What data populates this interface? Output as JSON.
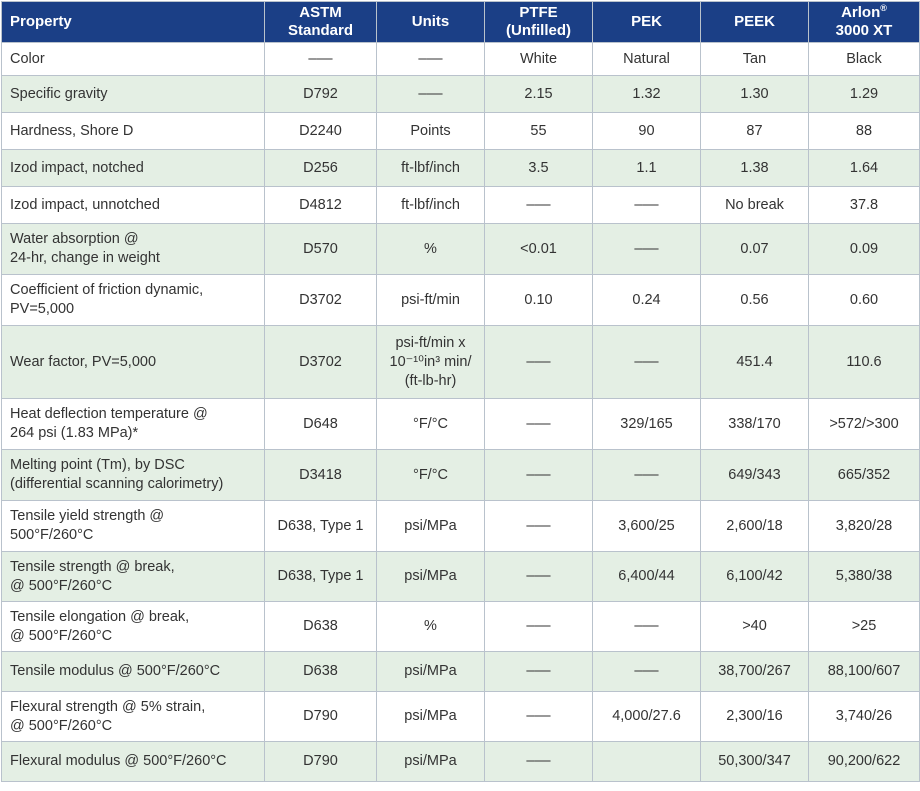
{
  "headers": {
    "property": "Property",
    "astm_1": "ASTM",
    "astm_2": "Standard",
    "units": "Units",
    "ptfe_1": "PTFE",
    "ptfe_2": "(Unfilled)",
    "pek": "PEK",
    "peek": "PEEK",
    "arlon_1": "Arlon",
    "arlon_sup": "®",
    "arlon_2": "3000 XT"
  },
  "rows": [
    {
      "property": [
        "Color"
      ],
      "astm": "–––",
      "units": [
        "–––"
      ],
      "ptfe": "White",
      "pek": "Natural",
      "peek": "Tan",
      "arlon": "Black"
    },
    {
      "property": [
        "Specific gravity"
      ],
      "astm": "D792",
      "units": [
        "–––"
      ],
      "ptfe": "2.15",
      "pek": "1.32",
      "peek": "1.30",
      "arlon": "1.29"
    },
    {
      "property": [
        "Hardness, Shore D"
      ],
      "astm": "D2240",
      "units": [
        "Points"
      ],
      "ptfe": "55",
      "pek": "90",
      "peek": "87",
      "arlon": "88"
    },
    {
      "property": [
        "Izod impact, notched"
      ],
      "astm": "D256",
      "units": [
        "ft-lbf/inch"
      ],
      "ptfe": "3.5",
      "pek": "1.1",
      "peek": "1.38",
      "arlon": "1.64"
    },
    {
      "property": [
        "Izod impact, unnotched"
      ],
      "astm": "D4812",
      "units": [
        "ft-lbf/inch"
      ],
      "ptfe": "–––",
      "pek": "–––",
      "peek": "No break",
      "arlon": "37.8"
    },
    {
      "property": [
        "Water absorption @",
        "24-hr, change in weight"
      ],
      "astm": "D570",
      "units": [
        "%"
      ],
      "ptfe": "<0.01",
      "pek": "–––",
      "peek": "0.07",
      "arlon": "0.09"
    },
    {
      "property": [
        "Coefficient of friction dynamic,",
        "PV=5,000"
      ],
      "astm": "D3702",
      "units": [
        "psi-ft/min"
      ],
      "ptfe": "0.10",
      "pek": "0.24",
      "peek": "0.56",
      "arlon": "0.60"
    },
    {
      "property": [
        "Wear factor, PV=5,000"
      ],
      "astm": "D3702",
      "units": [
        "psi-ft/min x",
        "10⁻¹⁰in³ min/",
        "(ft-lb-hr)"
      ],
      "ptfe": "–––",
      "pek": "–––",
      "peek": "451.4",
      "arlon": "110.6"
    },
    {
      "property": [
        "Heat deflection temperature @",
        "264 psi (1.83 MPa)*"
      ],
      "astm": "D648",
      "units": [
        "°F/°C"
      ],
      "ptfe": "–––",
      "pek": "329/165",
      "peek": "338/170",
      "arlon": ">572/>300"
    },
    {
      "property": [
        "Melting point (Tm), by DSC",
        "(differential scanning calorimetry)"
      ],
      "astm": "D3418",
      "units": [
        "°F/°C"
      ],
      "ptfe": "–––",
      "pek": "–––",
      "peek": "649/343",
      "arlon": "665/352"
    },
    {
      "property": [
        "Tensile yield strength @",
        "500°F/260°C"
      ],
      "astm": "D638, Type 1",
      "units": [
        "psi/MPa"
      ],
      "ptfe": "–––",
      "pek": "3,600/25",
      "peek": "2,600/18",
      "arlon": "3,820/28"
    },
    {
      "property": [
        "Tensile strength @ break,",
        "@ 500°F/260°C"
      ],
      "astm": "D638, Type 1",
      "units": [
        "psi/MPa"
      ],
      "ptfe": "–––",
      "pek": "6,400/44",
      "peek": "6,100/42",
      "arlon": "5,380/38"
    },
    {
      "property": [
        "Tensile elongation @ break,",
        "@ 500°F/260°C"
      ],
      "astm": "D638",
      "units": [
        "%"
      ],
      "ptfe": "–––",
      "pek": "–––",
      "peek": ">40",
      "arlon": ">25"
    },
    {
      "property": [
        "Tensile modulus @ 500°F/260°C"
      ],
      "astm": "D638",
      "units": [
        "psi/MPa"
      ],
      "ptfe": "–––",
      "pek": "–––",
      "peek": "38,700/267",
      "arlon": "88,100/607"
    },
    {
      "property": [
        "Flexural strength @ 5% strain,",
        "@ 500°F/260°C"
      ],
      "astm": "D790",
      "units": [
        "psi/MPa"
      ],
      "ptfe": "–––",
      "pek": "4,000/27.6",
      "peek": "2,300/16",
      "arlon": "3,740/26"
    },
    {
      "property": [
        "Flexural modulus @ 500°F/260°C"
      ],
      "astm": "D790",
      "units": [
        "psi/MPa"
      ],
      "ptfe": "–––",
      "pek": "",
      "peek": "50,300/347",
      "arlon": "90,200/622"
    }
  ],
  "colors": {
    "header_bg": "#1b3f86",
    "header_text": "#ffffff",
    "alt_row_bg": "#e4efe4",
    "border": "#b9c2cc",
    "body_text": "#333333"
  }
}
